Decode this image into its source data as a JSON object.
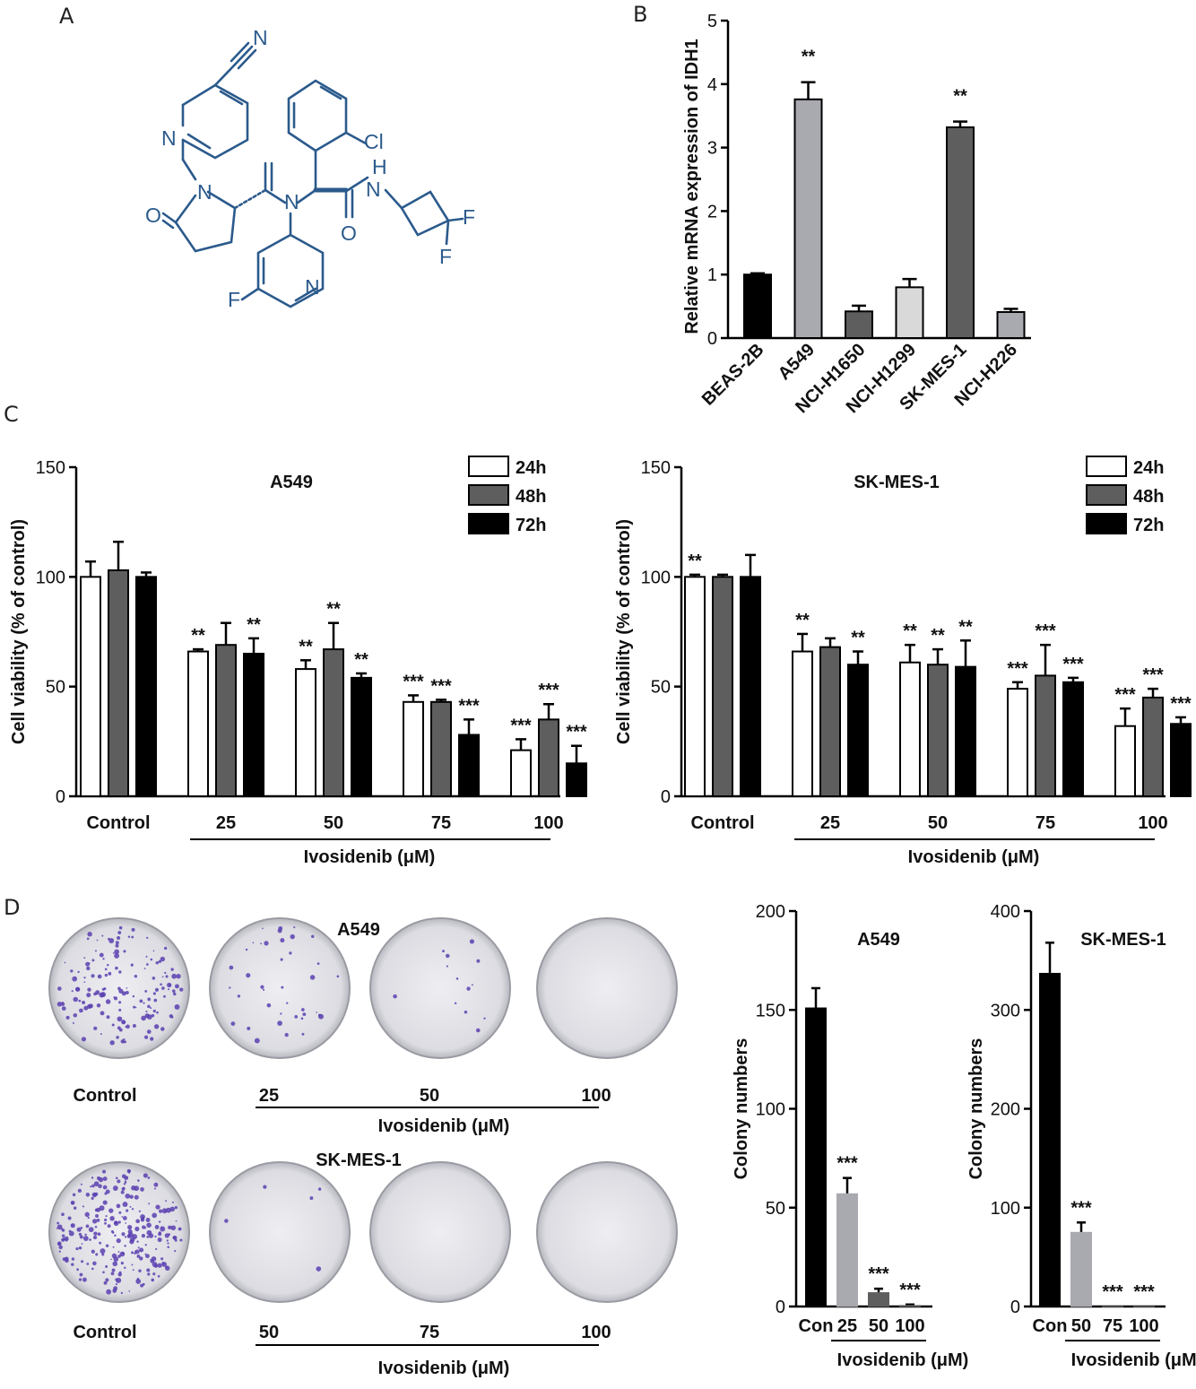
{
  "panels": {
    "A": "A",
    "B": "B",
    "C": "C",
    "D": "D"
  },
  "molecule": {
    "atom_labels": [
      "N",
      "N",
      "N",
      "O",
      "N",
      "Cl",
      "H",
      "N",
      "O",
      "F",
      "N",
      "F",
      "F"
    ],
    "colors": {
      "bond": "#2b5a8c"
    }
  },
  "colors": {
    "black": "#000000",
    "dark_gray": "#5e5e5e",
    "light_gray": "#a9a9b0",
    "very_light_gray": "#d9d9d9",
    "white": "#ffffff",
    "plate_bg": "#e6e6ea",
    "colony": "#5a3fb0"
  },
  "chart_data": [
    {
      "id": "B",
      "type": "bar",
      "categories": [
        "BEAS-2B",
        "A549",
        "NCI-H1650",
        "NCI-H1299",
        "SK-MES-1",
        "NCI-H226"
      ],
      "values": [
        1.0,
        3.76,
        0.42,
        0.8,
        3.32,
        0.41
      ],
      "errors": [
        0.02,
        0.27,
        0.09,
        0.13,
        0.09,
        0.05
      ],
      "colors": [
        "#000000",
        "#a9a9b0",
        "#5e5e5e",
        "#d9d9d9",
        "#5e5e5e",
        "#a9a9b0"
      ],
      "annotations": [
        "",
        "**",
        "",
        "",
        "**",
        ""
      ],
      "ylabel": "Relative mRNA expression of IDH1",
      "yticks": [
        0,
        1,
        2,
        3,
        4,
        5
      ],
      "ylim": [
        0,
        5
      ]
    },
    {
      "id": "C1",
      "type": "bar",
      "title": "A549",
      "categories": [
        "Control",
        "25",
        "50",
        "75",
        "100"
      ],
      "xlabel": "Ivosidenib (μM)",
      "ylabel": "Cell viability (% of control)",
      "yticks": [
        0,
        50,
        100,
        150
      ],
      "ylim": [
        0,
        150
      ],
      "series": [
        {
          "name": "24h",
          "color": "#ffffff",
          "values": [
            100,
            66,
            58,
            43,
            21
          ],
          "errors": [
            7,
            1,
            4,
            3,
            5
          ],
          "annotations": [
            "",
            "**",
            "**",
            "***",
            "***"
          ]
        },
        {
          "name": "48h",
          "color": "#5e5e5e",
          "values": [
            103,
            69,
            67,
            43,
            35
          ],
          "errors": [
            13,
            10,
            12,
            1,
            7
          ],
          "annotations": [
            "",
            "",
            "**",
            "***",
            "***"
          ]
        },
        {
          "name": "72h",
          "color": "#000000",
          "values": [
            100,
            65,
            54,
            28,
            15
          ],
          "errors": [
            2,
            7,
            2,
            7,
            8
          ],
          "annotations": [
            "",
            "**",
            "**",
            "***",
            "***"
          ]
        }
      ]
    },
    {
      "id": "C2",
      "type": "bar",
      "title": "SK-MES-1",
      "categories": [
        "Control",
        "25",
        "50",
        "75",
        "100"
      ],
      "xlabel": "Ivosidenib (μM)",
      "ylabel": "Cell viability (% of control)",
      "yticks": [
        0,
        50,
        100,
        150
      ],
      "ylim": [
        0,
        150
      ],
      "series": [
        {
          "name": "24h",
          "color": "#ffffff",
          "values": [
            100,
            66,
            61,
            49,
            32
          ],
          "errors": [
            1,
            8,
            8,
            3,
            8
          ],
          "annotations": [
            "**",
            "**",
            "**",
            "***",
            "***"
          ]
        },
        {
          "name": "48h",
          "color": "#5e5e5e",
          "values": [
            100,
            68,
            60,
            55,
            45
          ],
          "errors": [
            1,
            4,
            7,
            14,
            4
          ],
          "annotations": [
            "",
            "",
            "**",
            "***",
            "***"
          ]
        },
        {
          "name": "72h",
          "color": "#000000",
          "values": [
            100,
            60,
            59,
            52,
            33
          ],
          "errors": [
            10,
            6,
            12,
            2,
            3
          ],
          "annotations": [
            "",
            "**",
            "**",
            "***",
            "***"
          ]
        }
      ]
    },
    {
      "id": "D1",
      "type": "bar",
      "title": "A549",
      "categories": [
        "Con",
        "25",
        "50",
        "100"
      ],
      "values": [
        151,
        57,
        7,
        0.5
      ],
      "errors": [
        10,
        8,
        2,
        0.5
      ],
      "colors": [
        "#000000",
        "#a9a9b0",
        "#5e5e5e",
        "#5e5e5e"
      ],
      "annotations": [
        "",
        "***",
        "***",
        "***"
      ],
      "xlabel": "Ivosidenib (μM)",
      "ylabel": "Colony numbers",
      "yticks": [
        0,
        50,
        100,
        150,
        200
      ],
      "ylim": [
        0,
        200
      ]
    },
    {
      "id": "D2",
      "type": "bar",
      "title": "SK-MES-1",
      "categories": [
        "Con",
        "50",
        "75",
        "100"
      ],
      "values": [
        337,
        75,
        0,
        0
      ],
      "errors": [
        31,
        10,
        0,
        0
      ],
      "colors": [
        "#000000",
        "#a9a9b0",
        "#5e5e5e",
        "#5e5e5e"
      ],
      "annotations": [
        "",
        "***",
        "***",
        "***"
      ],
      "xlabel": "Ivosidenib (μM)",
      "ylabel": "Colony numbers",
      "yticks": [
        0,
        100,
        200,
        300,
        400
      ],
      "ylim": [
        0,
        400
      ]
    }
  ],
  "plates": {
    "row1": {
      "title": "A549",
      "labels": [
        "Control",
        "25",
        "50",
        "100"
      ],
      "colony_density": [
        0.6,
        0.15,
        0.05,
        0.0
      ],
      "xlabel": "Ivosidenib (μM)"
    },
    "row2": {
      "title": "SK-MES-1",
      "labels": [
        "Control",
        "50",
        "75",
        "100"
      ],
      "colony_density": [
        1.0,
        0.02,
        0.0,
        0.0
      ],
      "xlabel": "Ivosidenib (μM)"
    }
  }
}
